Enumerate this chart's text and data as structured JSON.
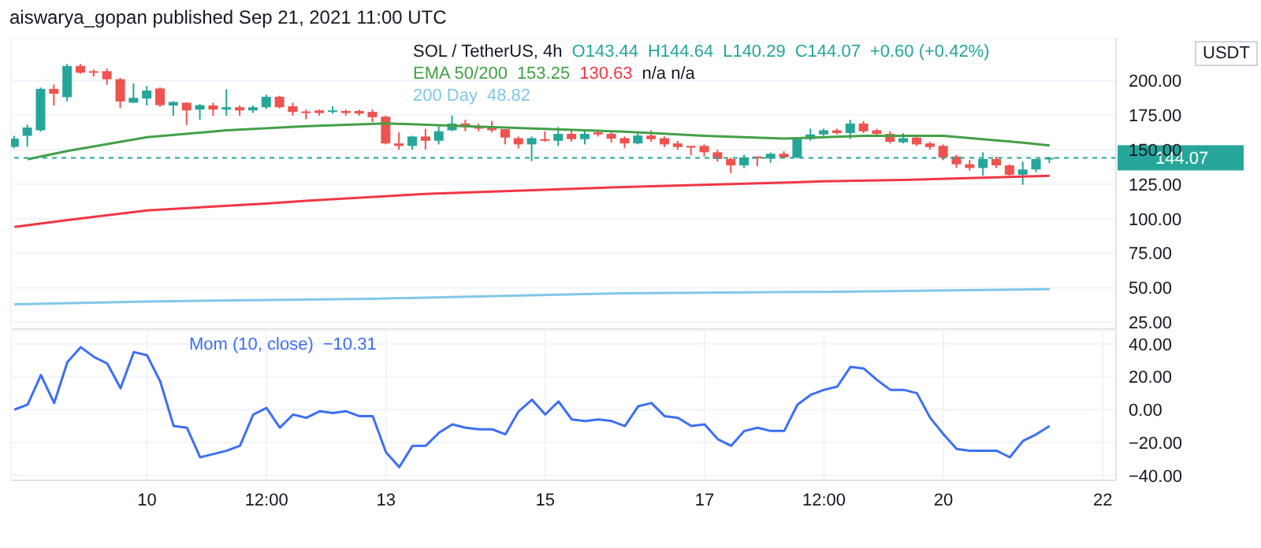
{
  "chart_data": [
    {
      "type": "candlestick",
      "title": "SOL / TetherUS, 4h",
      "subtitle": "aiswarya_gopan published Sep 21, 2021 11:00 UTC",
      "ylabel": "USDT",
      "annotations": [
        "O143.44",
        "H144.64",
        "L140.29",
        "C144.07",
        "+0.60 (+0.42%)",
        "153.25",
        "130.63",
        "n/a n/a",
        "48.82"
      ],
      "x": [
        "2021-09-08T08:00",
        "2021-09-08T12:00",
        "2021-09-08T16:00",
        "2021-09-08T20:00",
        "2021-09-09T00:00",
        "2021-09-09T04:00",
        "2021-09-09T08:00",
        "2021-09-09T12:00",
        "2021-09-09T16:00",
        "2021-09-09T20:00",
        "2021-09-10T00:00",
        "2021-09-10T04:00",
        "2021-09-10T08:00",
        "2021-09-10T12:00",
        "2021-09-10T16:00",
        "2021-09-10T20:00",
        "2021-09-11T00:00",
        "2021-09-11T04:00",
        "2021-09-11T08:00",
        "2021-09-11T12:00",
        "2021-09-11T16:00",
        "2021-09-11T20:00",
        "2021-09-12T00:00",
        "2021-09-12T04:00",
        "2021-09-12T08:00",
        "2021-09-12T12:00",
        "2021-09-12T16:00",
        "2021-09-12T20:00",
        "2021-09-13T00:00",
        "2021-09-13T04:00",
        "2021-09-13T08:00",
        "2021-09-13T12:00",
        "2021-09-13T16:00",
        "2021-09-13T20:00",
        "2021-09-14T00:00",
        "2021-09-14T04:00",
        "2021-09-14T08:00",
        "2021-09-14T12:00",
        "2021-09-14T16:00",
        "2021-09-14T20:00",
        "2021-09-15T00:00",
        "2021-09-15T04:00",
        "2021-09-15T08:00",
        "2021-09-15T12:00",
        "2021-09-15T16:00",
        "2021-09-15T20:00",
        "2021-09-16T00:00",
        "2021-09-16T04:00",
        "2021-09-16T08:00",
        "2021-09-16T12:00",
        "2021-09-16T16:00",
        "2021-09-16T20:00",
        "2021-09-17T00:00",
        "2021-09-17T04:00",
        "2021-09-17T08:00",
        "2021-09-17T12:00",
        "2021-09-17T16:00",
        "2021-09-17T20:00",
        "2021-09-18T00:00",
        "2021-09-18T04:00",
        "2021-09-18T08:00",
        "2021-09-18T12:00",
        "2021-09-18T16:00",
        "2021-09-18T20:00",
        "2021-09-19T00:00",
        "2021-09-19T04:00",
        "2021-09-19T08:00",
        "2021-09-19T12:00",
        "2021-09-19T16:00",
        "2021-09-19T20:00",
        "2021-09-20T00:00",
        "2021-09-20T04:00",
        "2021-09-20T08:00",
        "2021-09-20T12:00",
        "2021-09-20T16:00",
        "2021-09-20T20:00",
        "2021-09-21T00:00",
        "2021-09-21T04:00",
        "2021-09-21T08:00"
      ],
      "ohlc": [
        [
          152,
          160,
          151,
          158
        ],
        [
          160,
          168,
          152,
          166
        ],
        [
          164,
          195,
          163,
          194
        ],
        [
          194,
          197,
          182,
          190.5
        ],
        [
          188,
          212,
          185,
          210.6
        ],
        [
          210.6,
          212,
          205,
          205.7
        ],
        [
          206.8,
          208,
          203,
          205.7
        ],
        [
          206.8,
          208.7,
          197,
          201
        ],
        [
          201,
          202,
          180,
          184.9
        ],
        [
          184,
          198,
          184,
          187.5
        ],
        [
          187,
          196,
          182,
          192.8
        ],
        [
          194.3,
          195,
          181,
          182.2
        ],
        [
          182,
          185,
          174.6,
          184.5
        ],
        [
          184,
          184,
          167.8,
          178.4
        ],
        [
          179,
          183,
          171.6,
          182.2
        ],
        [
          182,
          184,
          174.6,
          179
        ],
        [
          179,
          193.6,
          174.6,
          180.7
        ],
        [
          180.7,
          182,
          174.6,
          178.4
        ],
        [
          178.4,
          182,
          176.5,
          180.7
        ],
        [
          180.7,
          189.8,
          179.5,
          188.3
        ],
        [
          188.3,
          189,
          179.9,
          180.7
        ],
        [
          181.4,
          184,
          174.6,
          177.3
        ],
        [
          177.6,
          179,
          172,
          176.9
        ],
        [
          178.4,
          179,
          174.6,
          176.5
        ],
        [
          177.3,
          181.4,
          176,
          178.4
        ],
        [
          178,
          179,
          174.6,
          176.5
        ],
        [
          178,
          179,
          174.6,
          176.1
        ],
        [
          177.3,
          179,
          170,
          173.5
        ],
        [
          173.9,
          174.6,
          153.8,
          154.5
        ],
        [
          154.5,
          162.5,
          150,
          152.7
        ],
        [
          152.7,
          160,
          150,
          159.5
        ],
        [
          159.5,
          165,
          150,
          156.4
        ],
        [
          156.4,
          167,
          153.8,
          163.3
        ],
        [
          164,
          174.6,
          163.3,
          168.9
        ],
        [
          168.9,
          171.6,
          163.3,
          166.3
        ],
        [
          167,
          168.9,
          163.3,
          165.2
        ],
        [
          166.3,
          170.8,
          162.5,
          164
        ],
        [
          164.8,
          164.8,
          153.8,
          158.7
        ],
        [
          158.3,
          159.5,
          150.8,
          153.8
        ],
        [
          153.8,
          159.5,
          141.7,
          158.3
        ],
        [
          157.6,
          163.3,
          155.7,
          156.4
        ],
        [
          156.4,
          166.3,
          152.7,
          161.4
        ],
        [
          161.4,
          164,
          155.7,
          157.6
        ],
        [
          157.6,
          163.3,
          153.8,
          161.4
        ],
        [
          162.5,
          164,
          159.5,
          161
        ],
        [
          161.4,
          163.3,
          155,
          158
        ],
        [
          158.3,
          159.5,
          151,
          154.5
        ],
        [
          154.5,
          163.3,
          153.8,
          160.2
        ],
        [
          160.2,
          164,
          155.7,
          157.6
        ],
        [
          158.3,
          159.5,
          151.9,
          153.8
        ],
        [
          154.5,
          156.4,
          150,
          151.9
        ],
        [
          152.7,
          152.7,
          146,
          151.5
        ],
        [
          152.7,
          153.8,
          145,
          148.1
        ],
        [
          148.1,
          150,
          141.3,
          143.2
        ],
        [
          143.2,
          144.3,
          133,
          138.6
        ],
        [
          138.6,
          146.2,
          136.7,
          144.3
        ],
        [
          145,
          145,
          137.9,
          143.6
        ],
        [
          143.6,
          148,
          140.5,
          147
        ],
        [
          147,
          148.9,
          143.6,
          144.3
        ],
        [
          144.3,
          158.3,
          143.6,
          157.6
        ],
        [
          157.6,
          165.2,
          156.4,
          161
        ],
        [
          161,
          165.2,
          160,
          164
        ],
        [
          164,
          165.2,
          161,
          162
        ],
        [
          162,
          171.6,
          157.6,
          168.9
        ],
        [
          168.9,
          170.8,
          162,
          163.3
        ],
        [
          164,
          165.2,
          160,
          161.4
        ],
        [
          161.4,
          163.3,
          154.5,
          155.7
        ],
        [
          155.3,
          162,
          154.5,
          158.3
        ],
        [
          158.7,
          160,
          152.7,
          153.8
        ],
        [
          154.5,
          155.7,
          150,
          151.9
        ],
        [
          152.7,
          153.8,
          142.4,
          144.3
        ],
        [
          145,
          146.2,
          136.7,
          139.4
        ],
        [
          139.4,
          142.4,
          134.8,
          136.7
        ],
        [
          136.7,
          148.1,
          131.1,
          143.2
        ],
        [
          143.2,
          145,
          136.7,
          138.6
        ],
        [
          138.6,
          139.4,
          131.1,
          131.8
        ],
        [
          131.8,
          141.3,
          124.6,
          135.6
        ],
        [
          135.6,
          143.2,
          133.7,
          143.2
        ],
        [
          143.44,
          144.64,
          140.29,
          144.07
        ]
      ],
      "colors": [
        "#26a69a",
        "#26a69a",
        "#26a69a",
        "#ef5350",
        "#26a69a",
        "#ef5350",
        "#ef5350",
        "#ef5350",
        "#ef5350",
        "#26a69a",
        "#26a69a",
        "#ef5350",
        "#26a69a",
        "#ef5350",
        "#26a69a",
        "#ef5350",
        "#26a69a",
        "#ef5350",
        "#26a69a",
        "#26a69a",
        "#ef5350",
        "#ef5350",
        "#ef5350",
        "#ef5350",
        "#26a69a",
        "#ef5350",
        "#ef5350",
        "#ef5350",
        "#ef5350",
        "#ef5350",
        "#26a69a",
        "#ef5350",
        "#26a69a",
        "#26a69a",
        "#ef5350",
        "#ef5350",
        "#ef5350",
        "#ef5350",
        "#ef5350",
        "#26a69a",
        "#ef5350",
        "#26a69a",
        "#ef5350",
        "#26a69a",
        "#ef5350",
        "#ef5350",
        "#ef5350",
        "#26a69a",
        "#ef5350",
        "#ef5350",
        "#ef5350",
        "#ef5350",
        "#ef5350",
        "#ef5350",
        "#ef5350",
        "#26a69a",
        "#ef5350",
        "#26a69a",
        "#ef5350",
        "#26a69a",
        "#26a69a",
        "#26a69a",
        "#ef5350",
        "#26a69a",
        "#ef5350",
        "#ef5350",
        "#ef5350",
        "#26a69a",
        "#ef5350",
        "#ef5350",
        "#ef5350",
        "#ef5350",
        "#ef5350",
        "#26a69a",
        "#ef5350",
        "#ef5350",
        "#26a69a",
        "#26a69a",
        "#26a69a"
      ],
      "series": [
        {
          "type": "line",
          "name": "EMA 50/200",
          "color": "#43a047",
          "x": [
            "2021-09-08T12:00",
            "2021-09-09T00:00",
            "2021-09-10T00:00",
            "2021-09-11T00:00",
            "2021-09-12T00:00",
            "2021-09-13T00:00",
            "2021-09-14T00:00",
            "2021-09-15T00:00",
            "2021-09-16T00:00",
            "2021-09-17T00:00",
            "2021-09-18T00:00",
            "2021-09-19T00:00",
            "2021-09-20T00:00",
            "2021-09-21T00:00",
            "2021-09-21T08:00"
          ],
          "values": [
            143,
            149,
            159,
            164,
            167,
            169,
            167,
            165,
            163,
            160,
            158,
            160,
            160,
            155,
            153
          ]
        },
        {
          "type": "line",
          "color": "#f23645",
          "x": [
            "2021-09-08T08:00",
            "2021-09-09T00:00",
            "2021-09-10T00:00",
            "2021-09-11T12:00",
            "2021-09-12T00:00",
            "2021-09-13T12:00",
            "2021-09-16T00:00",
            "2021-09-18T12:00",
            "2021-09-19T12:00",
            "2021-09-21T08:00"
          ],
          "values": [
            94,
            99,
            106,
            111,
            113,
            118,
            123,
            127,
            128,
            131
          ]
        },
        {
          "type": "line",
          "name": "200 Day",
          "color": "#81c7e8",
          "x": [
            "2021-09-08T08:00",
            "2021-09-10T00:00",
            "2021-09-12T20:00",
            "2021-09-16T00:00",
            "2021-09-18T12:00",
            "2021-09-21T08:00"
          ],
          "values": [
            38,
            40,
            42,
            46,
            47,
            49
          ]
        }
      ],
      "ref_lines": [
        {
          "axis": "y",
          "value": 144.07,
          "label": "144.07",
          "color": "#26a69a",
          "line_style": "dashed"
        }
      ],
      "xlim": [
        "2021-09-08T07:00",
        "2021-09-22T04:00"
      ],
      "xticks": [
        {
          "value": "2021-09-10",
          "label": null
        },
        {
          "value": "2021-09-11T12:00",
          "label": null
        },
        {
          "value": "2021-09-13",
          "label": null
        },
        {
          "value": "2021-09-15",
          "label": null
        },
        {
          "value": "2021-09-17",
          "label": null
        },
        {
          "value": "2021-09-18T12:00",
          "label": null
        },
        {
          "value": "2021-09-20",
          "label": null
        },
        {
          "value": "2021-09-22",
          "label": null
        }
      ],
      "ylim": [
        20,
        231
      ],
      "yticks": [
        {
          "value": 25,
          "label": "25.00"
        },
        {
          "value": 50,
          "label": "50.00"
        },
        {
          "value": 75,
          "label": "75.00"
        },
        {
          "value": 100,
          "label": "100.00"
        },
        {
          "value": 125,
          "label": "125.00"
        },
        {
          "value": 150,
          "label": "150.00"
        },
        {
          "value": 175,
          "label": "175.00"
        },
        {
          "value": 200,
          "label": "200.00"
        }
      ],
      "grid": true,
      "legend": "top",
      "tick_labels": "y"
    },
    {
      "type": "line",
      "x": [
        "2021-09-08T08:00",
        "2021-09-08T12:00",
        "2021-09-08T16:00",
        "2021-09-08T20:00",
        "2021-09-09T00:00",
        "2021-09-09T04:00",
        "2021-09-09T08:00",
        "2021-09-09T12:00",
        "2021-09-09T16:00",
        "2021-09-09T20:00",
        "2021-09-10T00:00",
        "2021-09-10T04:00",
        "2021-09-10T08:00",
        "2021-09-10T12:00",
        "2021-09-10T16:00",
        "2021-09-10T20:00",
        "2021-09-11T00:00",
        "2021-09-11T04:00",
        "2021-09-11T08:00",
        "2021-09-11T12:00",
        "2021-09-11T16:00",
        "2021-09-11T20:00",
        "2021-09-12T00:00",
        "2021-09-12T04:00",
        "2021-09-12T08:00",
        "2021-09-12T12:00",
        "2021-09-12T16:00",
        "2021-09-12T20:00",
        "2021-09-13T00:00",
        "2021-09-13T04:00",
        "2021-09-13T08:00",
        "2021-09-13T12:00",
        "2021-09-13T16:00",
        "2021-09-13T20:00",
        "2021-09-14T00:00",
        "2021-09-14T04:00",
        "2021-09-14T08:00",
        "2021-09-14T12:00",
        "2021-09-14T16:00",
        "2021-09-14T20:00",
        "2021-09-15T00:00",
        "2021-09-15T04:00",
        "2021-09-15T08:00",
        "2021-09-15T12:00",
        "2021-09-15T16:00",
        "2021-09-15T20:00",
        "2021-09-16T00:00",
        "2021-09-16T04:00",
        "2021-09-16T08:00",
        "2021-09-16T12:00",
        "2021-09-16T16:00",
        "2021-09-16T20:00",
        "2021-09-17T00:00",
        "2021-09-17T04:00",
        "2021-09-17T08:00",
        "2021-09-17T12:00",
        "2021-09-17T16:00",
        "2021-09-17T20:00",
        "2021-09-18T00:00",
        "2021-09-18T04:00",
        "2021-09-18T08:00",
        "2021-09-18T12:00",
        "2021-09-18T16:00",
        "2021-09-18T20:00",
        "2021-09-19T00:00",
        "2021-09-19T04:00",
        "2021-09-19T08:00",
        "2021-09-19T12:00",
        "2021-09-19T16:00",
        "2021-09-19T20:00",
        "2021-09-20T00:00",
        "2021-09-20T04:00",
        "2021-09-20T08:00",
        "2021-09-20T12:00",
        "2021-09-20T16:00",
        "2021-09-20T20:00",
        "2021-09-21T00:00",
        "2021-09-21T04:00",
        "2021-09-21T08:00"
      ],
      "series": [
        {
          "name": "Mom (10, close)",
          "color": "#3d6ff5",
          "values": [
            0,
            3,
            21,
            4,
            29,
            38,
            32,
            28,
            13,
            35,
            33,
            17,
            -10,
            -11,
            -29,
            -27,
            -25,
            -22,
            -3,
            1,
            -11,
            -3,
            -5,
            -1,
            -2,
            -1,
            -4,
            -4,
            -26,
            -35,
            -22,
            -22,
            -14,
            -9,
            -11,
            -12,
            -12,
            -15,
            -1,
            6,
            -3,
            5,
            -6,
            -7,
            -6,
            -7,
            -10,
            2,
            4,
            -4,
            -5,
            -10,
            -9,
            -18,
            -22,
            -13,
            -11,
            -13,
            -13,
            3,
            9,
            12,
            14,
            26,
            25,
            18,
            12,
            12,
            10,
            -5,
            -15,
            -24,
            -25,
            -25,
            -25,
            -29,
            -19,
            -15,
            -10
          ]
        }
      ],
      "annotations": [
        "−10.31"
      ],
      "xlim": [
        "2021-09-08T07:00",
        "2021-09-22T04:00"
      ],
      "xticks": [
        {
          "value": "2021-09-10",
          "label": "10"
        },
        {
          "value": "2021-09-11T12:00",
          "label": "12:00"
        },
        {
          "value": "2021-09-13",
          "label": "13"
        },
        {
          "value": "2021-09-15",
          "label": "15"
        },
        {
          "value": "2021-09-17",
          "label": "17"
        },
        {
          "value": "2021-09-18T12:00",
          "label": "12:00"
        },
        {
          "value": "2021-09-20",
          "label": "20"
        },
        {
          "value": "2021-09-22",
          "label": "22"
        }
      ],
      "ylim": [
        -43,
        48
      ],
      "yticks": [
        {
          "value": -40,
          "label": "−40.00"
        },
        {
          "value": -20,
          "label": "−20.00"
        },
        {
          "value": 0,
          "label": "0.00"
        },
        {
          "value": 20,
          "label": "20.00"
        },
        {
          "value": 40,
          "label": "40.00"
        }
      ],
      "grid": true,
      "legend": "top left"
    }
  ]
}
